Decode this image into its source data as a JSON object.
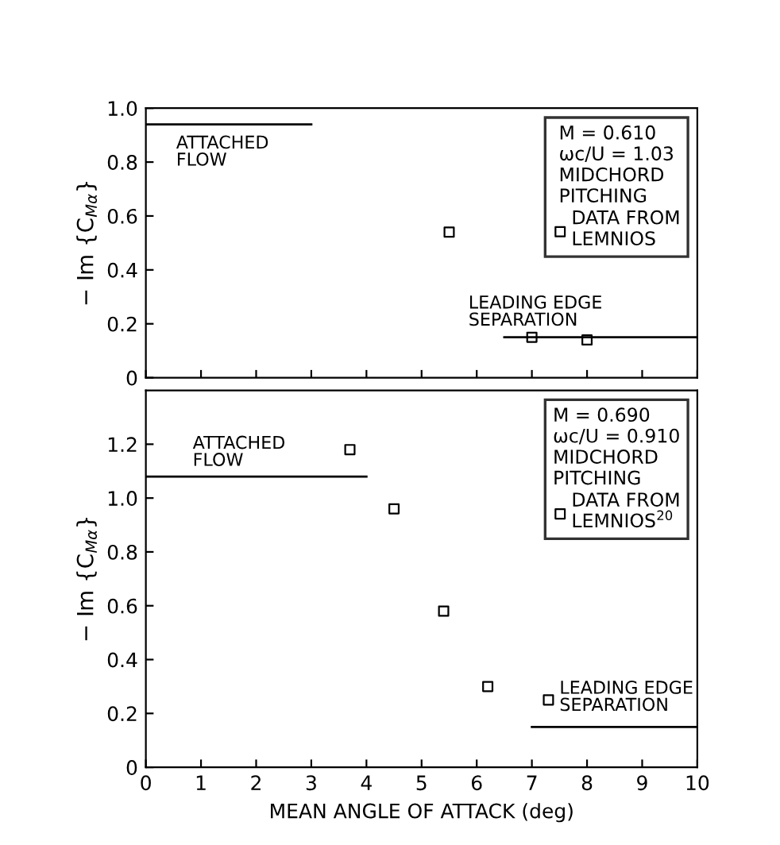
{
  "chart_data": [
    {
      "type": "scatter",
      "legend_title": "M = 0.610\nωc/U = 1.03\nMIDCHORD\nPITCHING",
      "ylabel": "− Im {C$_{Mα}$}",
      "xlim": [
        0,
        10
      ],
      "ylim": [
        0,
        1.0
      ],
      "xticks": [
        {
          "value": 0,
          "label": null
        },
        {
          "value": 1,
          "label": null
        },
        {
          "value": 2,
          "label": null
        },
        {
          "value": 3,
          "label": null
        },
        {
          "value": 4,
          "label": null
        },
        {
          "value": 5,
          "label": null
        },
        {
          "value": 6,
          "label": null
        },
        {
          "value": 7,
          "label": null
        },
        {
          "value": 8,
          "label": null
        },
        {
          "value": 9,
          "label": null
        },
        {
          "value": 10,
          "label": null
        }
      ],
      "yticks": [
        0,
        0.2,
        0.4,
        0.6,
        0.8,
        {
          "value": 1.0,
          "label": "1.0"
        }
      ],
      "tick_labels": "y",
      "grid": false,
      "legend": "top right",
      "series": [
        {
          "name": "DATA FROM\nLEMNIOS",
          "marker": "square",
          "color": "#000000",
          "x": [
            5.5,
            7.0,
            8.0
          ],
          "values": [
            0.54,
            0.15,
            0.14
          ]
        },
        {
          "type": "line",
          "color": "#000000",
          "x": [
            0,
            3
          ],
          "values": [
            0.94,
            0.94
          ]
        },
        {
          "type": "line",
          "color": "#000000",
          "x": [
            6.5,
            10
          ],
          "values": [
            0.15,
            0.15
          ]
        }
      ],
      "annotations": [
        "ATTACHED\nFLOW",
        "LEADING EDGE\nSEPARATION"
      ]
    },
    {
      "type": "scatter",
      "legend_title": "M = 0.690\nωc/U = 0.910\nMIDCHORD\nPITCHING",
      "ylabel": "− Im {C$_{Mα}$}",
      "xlabel": "MEAN ANGLE OF ATTACK (deg)",
      "xlim": [
        0,
        10
      ],
      "ylim": [
        0,
        1.4
      ],
      "xticks": [
        0,
        1,
        2,
        3,
        4,
        5,
        6,
        7,
        8,
        9,
        10
      ],
      "yticks": [
        0,
        0.2,
        0.4,
        0.6,
        0.8,
        {
          "value": 1.0,
          "label": "1.0"
        },
        1.2
      ],
      "grid": false,
      "legend": "top right",
      "series": [
        {
          "name": "DATA FROM\nLEMNIOS$^{20}$",
          "marker": "square",
          "color": "#000000",
          "x": [
            3.7,
            4.5,
            5.4,
            6.2,
            7.3
          ],
          "values": [
            1.18,
            0.96,
            0.58,
            0.3,
            0.25
          ]
        },
        {
          "type": "line",
          "color": "#000000",
          "x": [
            0,
            4
          ],
          "values": [
            1.08,
            1.08
          ]
        },
        {
          "type": "line",
          "color": "#000000",
          "x": [
            7,
            10
          ],
          "values": [
            0.15,
            0.15
          ]
        }
      ],
      "annotations": [
        "ATTACHED\nFLOW",
        "LEADING EDGE\nSEPARATION"
      ]
    }
  ]
}
